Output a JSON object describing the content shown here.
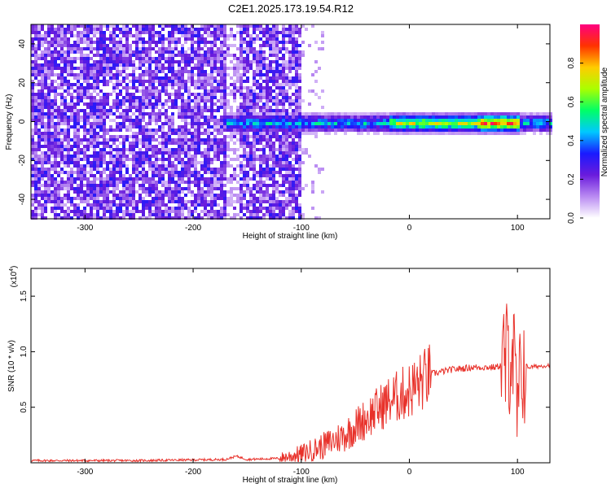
{
  "title": "C2E1.2025.173.19.54.R12",
  "colors": {
    "snr_line": "#e8312a",
    "frame": "#000000",
    "spectro_low": "#d9c6f5",
    "spectro_mid": "#6a1bdc"
  },
  "chart_data": [
    {
      "type": "heatmap",
      "title": "",
      "xlabel": "Height of straight line (km)",
      "ylabel": "Frequency (Hz)",
      "xlim": [
        -350,
        130
      ],
      "ylim": [
        -50,
        50
      ],
      "x_ticks": [
        -300,
        -200,
        -100,
        0,
        100
      ],
      "x_tick_labels": [
        "-300",
        "-200",
        "-100",
        "0",
        "100"
      ],
      "y_ticks": [
        40,
        20,
        0,
        -20,
        -40
      ],
      "y_tick_labels": [
        "40",
        "20",
        "0",
        "-20",
        "-40"
      ],
      "colorbar": {
        "label": "Normalized spectral amplitude",
        "range": [
          0,
          1
        ],
        "ticks": [
          0.0,
          0.2,
          0.4,
          0.6,
          0.8
        ],
        "tick_labels": [
          "0.0",
          "0.2",
          "0.4",
          "0.6",
          "0.8"
        ],
        "colormap": [
          "#ffffff",
          "#b98af2",
          "#6a1bdc",
          "#1a1aff",
          "#00c8ff",
          "#00ff66",
          "#aaff00",
          "#ffcc00",
          "#ff3300",
          "#ff0080"
        ]
      },
      "features": {
        "noise_region_x": [
          -350,
          -100
        ],
        "noise_fade_x": [
          -100,
          -80
        ],
        "signal_band_center_hz": 0,
        "signal_band_halfwidth_hz": 3,
        "signal_start_x": -170,
        "peak_amplitude_x": [
          -20,
          100
        ]
      }
    },
    {
      "type": "line",
      "title": "",
      "xlabel": "Height of straight line (km)",
      "ylabel": "SNR (10 * v/v)",
      "y_multiplier_label": "(x10",
      "y_multiplier_exp": "4",
      "xlim": [
        -350,
        130
      ],
      "ylim": [
        0,
        1.75
      ],
      "x_ticks": [
        -300,
        -200,
        -100,
        0,
        100
      ],
      "x_tick_labels": [
        "-300",
        "-200",
        "-100",
        "0",
        "100"
      ],
      "y_ticks": [
        0.5,
        1.0,
        1.5
      ],
      "y_tick_labels": [
        "0.5",
        "1.0",
        "1.5"
      ],
      "series": [
        {
          "x": [
            -350,
            -250,
            -170,
            -160,
            -150,
            -120,
            -100,
            -80,
            -60,
            -40,
            -20,
            0,
            10,
            20,
            40,
            60,
            80,
            90,
            95,
            100,
            105,
            110,
            120,
            130
          ],
          "y": [
            0.02,
            0.02,
            0.03,
            0.06,
            0.03,
            0.04,
            0.08,
            0.15,
            0.25,
            0.4,
            0.55,
            0.65,
            0.72,
            0.8,
            0.84,
            0.86,
            0.86,
            0.9,
            1.1,
            0.4,
            0.9,
            0.86,
            0.87,
            0.88
          ]
        }
      ]
    }
  ]
}
